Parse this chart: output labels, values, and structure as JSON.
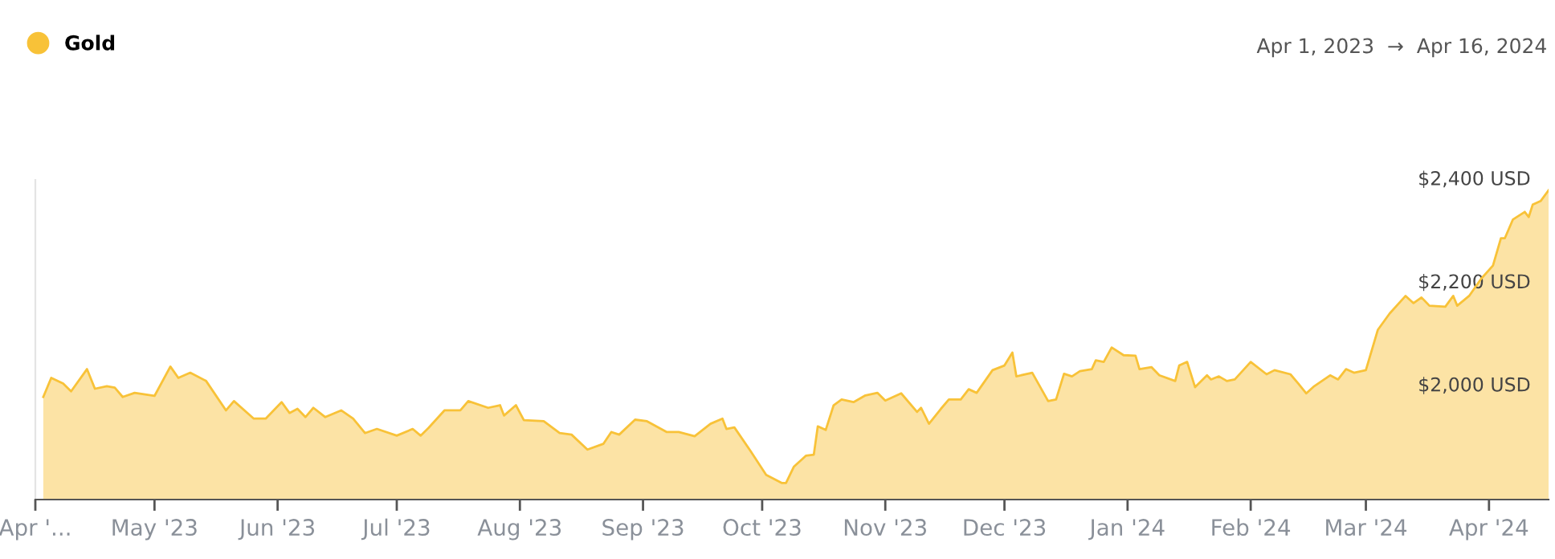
{
  "chart_data": {
    "type": "area",
    "annotations": [
      "Apr 1, 2023  →  Apr 16, 2024"
    ],
    "x": [
      "2023-04-03",
      "2023-04-05",
      "2023-04-08",
      "2023-04-10",
      "2023-04-14",
      "2023-04-16",
      "2023-04-19",
      "2023-04-21",
      "2023-04-23",
      "2023-04-26",
      "2023-05-01",
      "2023-05-05",
      "2023-05-07",
      "2023-05-10",
      "2023-05-14",
      "2023-05-19",
      "2023-05-21",
      "2023-05-26",
      "2023-05-29",
      "2023-06-02",
      "2023-06-04",
      "2023-06-06",
      "2023-06-08",
      "2023-06-10",
      "2023-06-13",
      "2023-06-17",
      "2023-06-20",
      "2023-06-23",
      "2023-06-26",
      "2023-07-01",
      "2023-07-05",
      "2023-07-07",
      "2023-07-09",
      "2023-07-13",
      "2023-07-17",
      "2023-07-19",
      "2023-07-24",
      "2023-07-27",
      "2023-07-28",
      "2023-07-31",
      "2023-08-02",
      "2023-08-07",
      "2023-08-11",
      "2023-08-14",
      "2023-08-18",
      "2023-08-22",
      "2023-08-24",
      "2023-08-26",
      "2023-08-30",
      "2023-09-02",
      "2023-09-07",
      "2023-09-10",
      "2023-09-14",
      "2023-09-18",
      "2023-09-21",
      "2023-09-22",
      "2023-09-24",
      "2023-09-28",
      "2023-10-02",
      "2023-10-06",
      "2023-10-07",
      "2023-10-09",
      "2023-10-12",
      "2023-10-14",
      "2023-10-15",
      "2023-10-17",
      "2023-10-19",
      "2023-10-21",
      "2023-10-24",
      "2023-10-27",
      "2023-10-30",
      "2023-11-01",
      "2023-11-05",
      "2023-11-09",
      "2023-11-10",
      "2023-11-12",
      "2023-11-15",
      "2023-11-17",
      "2023-11-20",
      "2023-11-22",
      "2023-11-24",
      "2023-11-28",
      "2023-12-01",
      "2023-12-03",
      "2023-12-04",
      "2023-12-08",
      "2023-12-12",
      "2023-12-14",
      "2023-12-16",
      "2023-12-18",
      "2023-12-20",
      "2023-12-23",
      "2023-12-24",
      "2023-12-26",
      "2023-12-28",
      "2023-12-31",
      "2024-01-03",
      "2024-01-04",
      "2024-01-07",
      "2024-01-09",
      "2024-01-13",
      "2024-01-14",
      "2024-01-16",
      "2024-01-18",
      "2024-01-21",
      "2024-01-22",
      "2024-01-24",
      "2024-01-26",
      "2024-01-28",
      "2024-02-01",
      "2024-02-05",
      "2024-02-07",
      "2024-02-11",
      "2024-02-13",
      "2024-02-15",
      "2024-02-17",
      "2024-02-21",
      "2024-02-23",
      "2024-02-25",
      "2024-02-27",
      "2024-03-01",
      "2024-03-04",
      "2024-03-07",
      "2024-03-11",
      "2024-03-13",
      "2024-03-15",
      "2024-03-17",
      "2024-03-21",
      "2024-03-23",
      "2024-03-24",
      "2024-03-27",
      "2024-03-30",
      "2024-04-02",
      "2024-04-04",
      "2024-04-05",
      "2024-04-07",
      "2024-04-10",
      "2024-04-11",
      "2024-04-12",
      "2024-04-14",
      "2024-04-16"
    ],
    "series": [
      {
        "name": "Gold",
        "color": "#f8c238",
        "values": [
          1979,
          2016,
          2005,
          1990,
          2033,
          1995,
          2000,
          1997,
          1979,
          1987,
          1981,
          2038,
          2016,
          2026,
          2010,
          1953,
          1971,
          1937,
          1937,
          1969,
          1948,
          1956,
          1940,
          1958,
          1940,
          1953,
          1937,
          1909,
          1917,
          1904,
          1917,
          1904,
          1919,
          1953,
          1953,
          1971,
          1958,
          1963,
          1943,
          1963,
          1934,
          1932,
          1909,
          1906,
          1877,
          1888,
          1911,
          1906,
          1935,
          1932,
          1911,
          1911,
          1903,
          1927,
          1937,
          1917,
          1920,
          1875,
          1828,
          1812,
          1812,
          1844,
          1865,
          1867,
          1922,
          1915,
          1963,
          1974,
          1969,
          1982,
          1987,
          1972,
          1986,
          1950,
          1958,
          1927,
          1956,
          1974,
          1974,
          1994,
          1987,
          2031,
          2040,
          2065,
          2019,
          2026,
          1971,
          1974,
          2024,
          2019,
          2029,
          2033,
          2050,
          2047,
          2075,
          2060,
          2059,
          2033,
          2037,
          2021,
          2010,
          2040,
          2047,
          1998,
          2021,
          2013,
          2019,
          2010,
          2013,
          2047,
          2023,
          2031,
          2023,
          2005,
          1986,
          2000,
          2021,
          2013,
          2033,
          2026,
          2031,
          2109,
          2141,
          2175,
          2161,
          2172,
          2156,
          2154,
          2175,
          2156,
          2175,
          2208,
          2234,
          2287,
          2287,
          2323,
          2338,
          2328,
          2352,
          2359,
          2380
        ]
      }
    ],
    "xlim": [
      "2023-04-01",
      "2024-04-16"
    ],
    "xticks": [
      {
        "value": "2023-04-01",
        "label": "Apr '..."
      },
      {
        "value": "2023-05-01",
        "label": "May '23"
      },
      {
        "value": "2023-06-01",
        "label": "Jun '23"
      },
      {
        "value": "2023-07-01",
        "label": "Jul '23"
      },
      {
        "value": "2023-08-01",
        "label": "Aug '23"
      },
      {
        "value": "2023-09-01",
        "label": "Sep '23"
      },
      {
        "value": "2023-10-01",
        "label": "Oct '23"
      },
      {
        "value": "2023-11-01",
        "label": "Nov '23"
      },
      {
        "value": "2023-12-01",
        "label": "Dec '23"
      },
      {
        "value": "2024-01-01",
        "label": "Jan '24"
      },
      {
        "value": "2024-02-01",
        "label": "Feb '24"
      },
      {
        "value": "2024-03-01",
        "label": "Mar '24"
      },
      {
        "value": "2024-04-01",
        "label": "Apr '24"
      }
    ],
    "ylim": [
      1780,
      2400
    ],
    "yticks": [
      {
        "value": 2000,
        "label": "$2,000 USD"
      },
      {
        "value": 2200,
        "label": "$2,200 USD"
      },
      {
        "value": 2400,
        "label": "$2,400 USD"
      }
    ],
    "legend": "top left",
    "grid": false
  }
}
